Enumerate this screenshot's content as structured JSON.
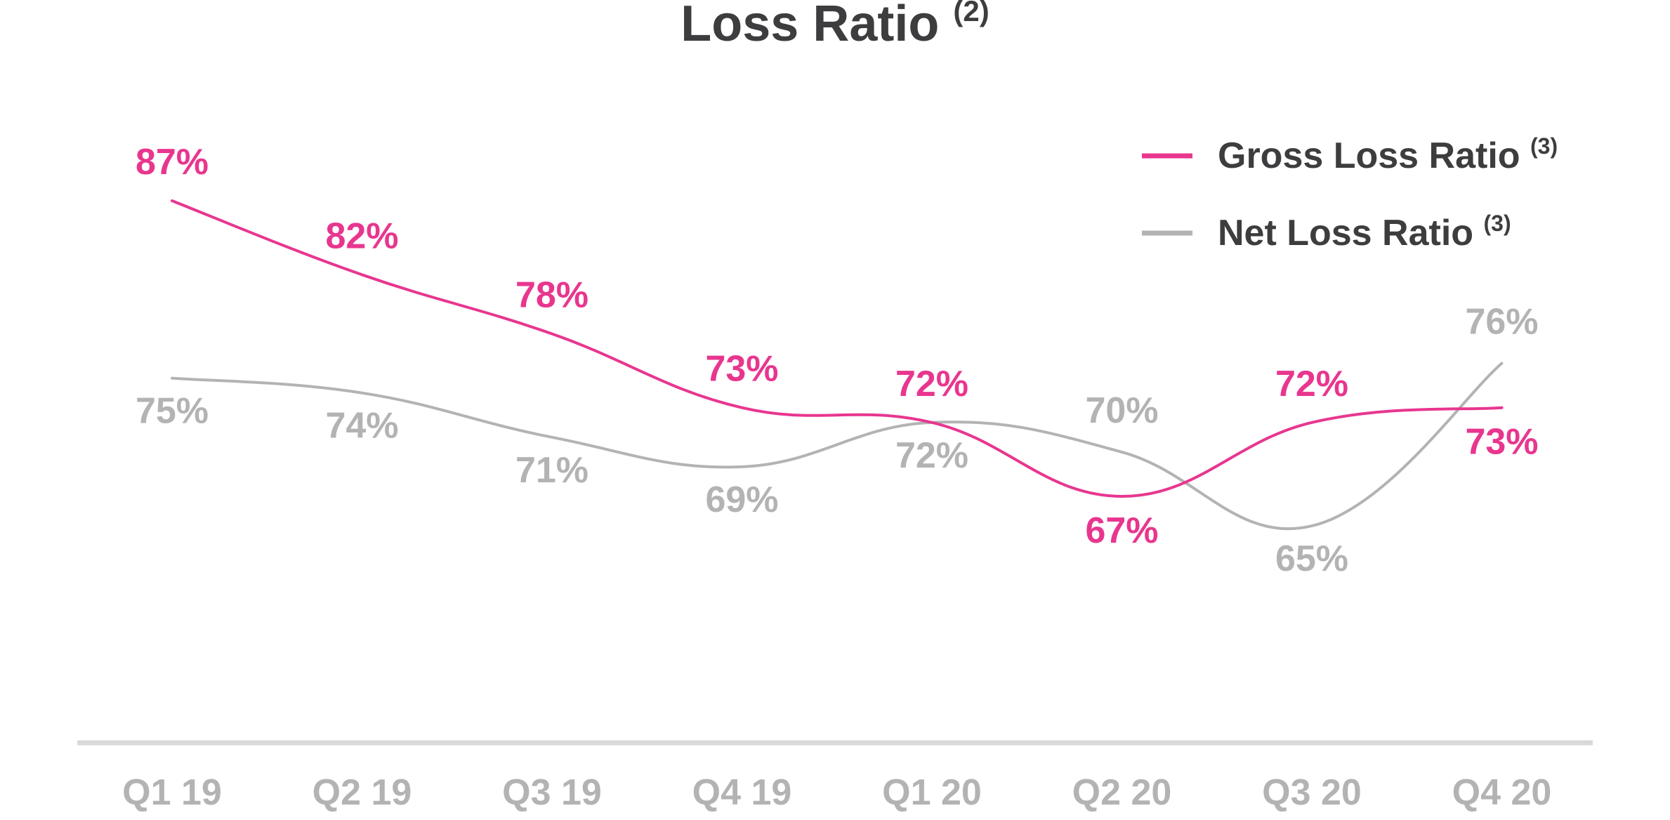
{
  "chart_data": {
    "type": "line",
    "title": "Loss Ratio",
    "title_superscript": "(2)",
    "categories": [
      "Q1 19",
      "Q2 19",
      "Q3 19",
      "Q4 19",
      "Q1 20",
      "Q2 20",
      "Q3 20",
      "Q4 20"
    ],
    "series": [
      {
        "name": "Gross Loss Ratio",
        "name_superscript": "(3)",
        "color": "#e8368f",
        "values": [
          87,
          82,
          78,
          73,
          72,
          67,
          72,
          73
        ],
        "labels": [
          "87%",
          "82%",
          "78%",
          "73%",
          "72%",
          "67%",
          "72%",
          "73%"
        ]
      },
      {
        "name": "Net Loss Ratio",
        "name_superscript": "(3)",
        "color": "#b3b3b3",
        "values": [
          75,
          74,
          71,
          69,
          72,
          70,
          65,
          76
        ],
        "labels": [
          "75%",
          "74%",
          "71%",
          "69%",
          "72%",
          "70%",
          "65%",
          "76%"
        ]
      }
    ],
    "xlabel": "",
    "ylabel": "",
    "ylim": [
      60,
      90
    ],
    "grid": false,
    "legend_position": "top-right",
    "colors": {
      "title": "#3d3d3f",
      "axis": "#d9d9d9",
      "tick": "#b3b3b3"
    }
  }
}
